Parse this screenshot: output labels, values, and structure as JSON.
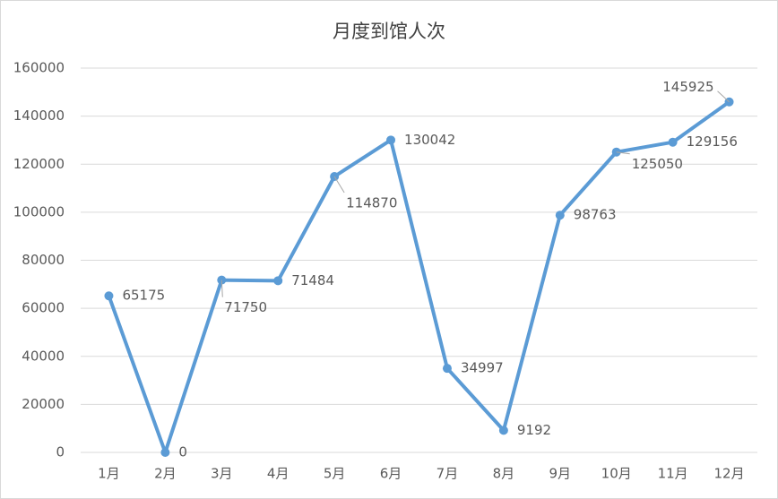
{
  "chart_data": {
    "type": "line",
    "title": "月度到馆人次",
    "categories": [
      "1月",
      "2月",
      "3月",
      "4月",
      "5月",
      "6月",
      "7月",
      "8月",
      "9月",
      "10月",
      "11月",
      "12月"
    ],
    "series": [
      {
        "name": "月度到馆人次",
        "color": "#5b9bd5",
        "values": [
          65175,
          0,
          71750,
          71484,
          114870,
          130042,
          34997,
          9192,
          98763,
          125050,
          129156,
          145925
        ]
      }
    ],
    "ylim": [
      0,
      160000
    ],
    "yticks": [
      0,
      20000,
      40000,
      60000,
      80000,
      100000,
      120000,
      140000,
      160000
    ],
    "grid": true
  }
}
